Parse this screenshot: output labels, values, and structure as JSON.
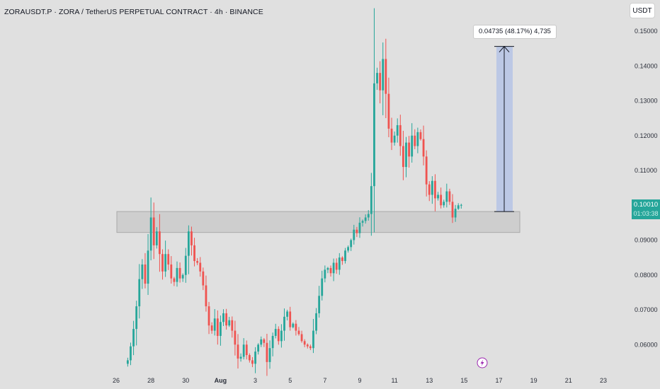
{
  "header": {
    "title": "ZORAUSDT.P · ZORA / TetherUS PERPETUAL CONTRACT · 4h · BINANCE"
  },
  "currency_button": "USDT",
  "price_tag": {
    "price": "0.10010",
    "countdown": "01:03:38"
  },
  "measure": {
    "label": "0.04735 (48.17%) 4,735",
    "from_price": 0.0982,
    "to_price": 0.1456
  },
  "zone": {
    "low": 0.0922,
    "high": 0.0982
  },
  "colors": {
    "up": "#26a69a",
    "down": "#ef5350",
    "zone": "#cacaca",
    "measure_fill": "#b8c5e6",
    "event_icon": "#9c27b0"
  },
  "event_icon": "lightning-icon",
  "chart_data": {
    "type": "candlestick",
    "title": "ZORAUSDT.P · ZORA / TetherUS PERPETUAL CONTRACT · 4h · BINANCE",
    "ylim": [
      0.053,
      0.152
    ],
    "xlim": [
      "2025-07-26",
      "2025-08-23"
    ],
    "y_ticks": [
      "0.15000",
      "0.14000",
      "0.13000",
      "0.12000",
      "0.11000",
      "0.10000",
      "0.09000",
      "0.08000",
      "0.07000",
      "0.06000"
    ],
    "x_ticks": [
      {
        "label": "26",
        "x": "2025-07-26",
        "bold": false
      },
      {
        "label": "28",
        "x": "2025-07-28",
        "bold": false
      },
      {
        "label": "30",
        "x": "2025-07-30",
        "bold": false
      },
      {
        "label": "Aug",
        "x": "2025-08-01",
        "bold": true
      },
      {
        "label": "3",
        "x": "2025-08-03",
        "bold": false
      },
      {
        "label": "5",
        "x": "2025-08-05",
        "bold": false
      },
      {
        "label": "7",
        "x": "2025-08-07",
        "bold": false
      },
      {
        "label": "9",
        "x": "2025-08-09",
        "bold": false
      },
      {
        "label": "11",
        "x": "2025-08-11",
        "bold": false
      },
      {
        "label": "13",
        "x": "2025-08-13",
        "bold": false
      },
      {
        "label": "15",
        "x": "2025-08-15",
        "bold": false
      },
      {
        "label": "17",
        "x": "2025-08-17",
        "bold": false
      },
      {
        "label": "19",
        "x": "2025-08-19",
        "bold": false
      },
      {
        "label": "21",
        "x": "2025-08-21",
        "bold": false
      },
      {
        "label": "23",
        "x": "2025-08-23",
        "bold": false
      }
    ],
    "candle_interval": "4h",
    "first_candle_time": "2025-07-26T16:00",
    "closes": [
      0.0555,
      0.0595,
      0.0645,
      0.071,
      0.0788,
      0.083,
      0.0775,
      0.087,
      0.0965,
      0.0885,
      0.0925,
      0.086,
      0.081,
      0.086,
      0.083,
      0.079,
      0.078,
      0.082,
      0.079,
      0.08,
      0.0855,
      0.0925,
      0.0885,
      0.084,
      0.0835,
      0.081,
      0.077,
      0.071,
      0.0655,
      0.064,
      0.0675,
      0.0625,
      0.0665,
      0.069,
      0.0655,
      0.067,
      0.064,
      0.06,
      0.056,
      0.0565,
      0.06,
      0.057,
      0.0555,
      0.0545,
      0.058,
      0.06,
      0.0615,
      0.0605,
      0.055,
      0.059,
      0.0625,
      0.0645,
      0.061,
      0.064,
      0.068,
      0.0695,
      0.065,
      0.066,
      0.064,
      0.063,
      0.061,
      0.06,
      0.0595,
      0.059,
      0.064,
      0.069,
      0.074,
      0.079,
      0.0815,
      0.082,
      0.0805,
      0.0835,
      0.0815,
      0.085,
      0.084,
      0.087,
      0.088,
      0.09,
      0.093,
      0.092,
      0.095,
      0.0955,
      0.0965,
      0.0975,
      0.1055,
      0.135,
      0.138,
      0.133,
      0.142,
      0.132,
      0.122,
      0.118,
      0.12,
      0.123,
      0.117,
      0.111,
      0.118,
      0.114,
      0.12,
      0.117,
      0.121,
      0.119,
      0.114,
      0.106,
      0.103,
      0.107,
      0.102,
      0.103,
      0.1,
      0.101,
      0.104,
      0.101,
      0.0965,
      0.099,
      0.1,
      0.1001
    ]
  }
}
